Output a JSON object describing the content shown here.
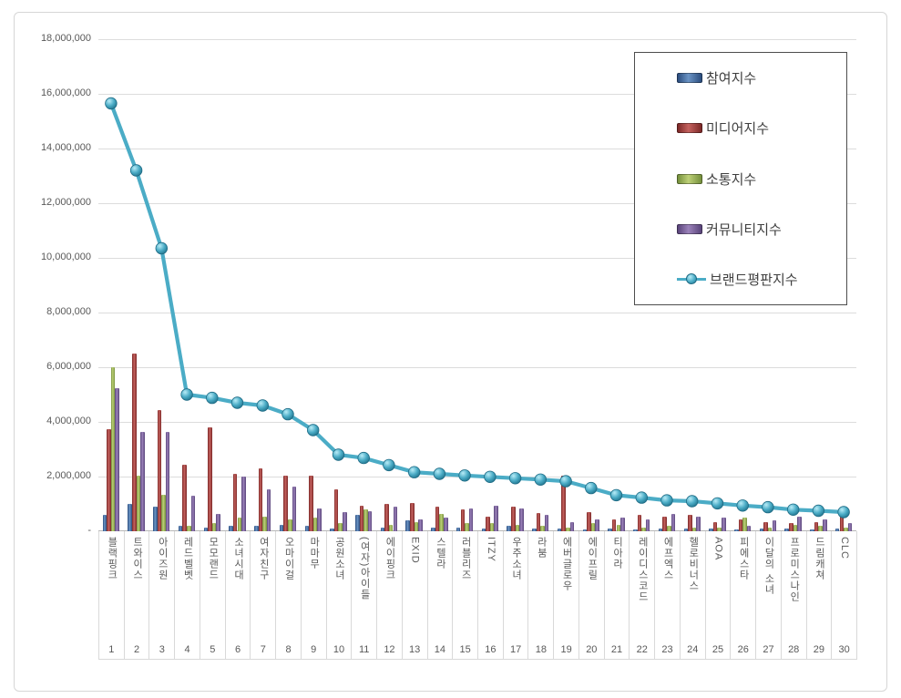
{
  "chart": {
    "background": "#ffffff",
    "grid_color": "#dcdcdc",
    "axis_color": "#b7b7b7",
    "text_color": "#595959"
  },
  "y_axis": {
    "tick_labels": [
      "18,000,000",
      "16,000,000",
      "14,000,000",
      "12,000,000",
      "10,000,000",
      "8,000,000",
      "6,000,000",
      "4,000,000",
      "2,000,000",
      "-"
    ],
    "min": 0,
    "max": 18000000,
    "step": 2000000
  },
  "chart_data": {
    "type": "bar+line",
    "title": "",
    "xlabel": "",
    "ylabel": "",
    "ylim": [
      0,
      18000000
    ],
    "grid": true,
    "legend_position": "top-right",
    "categories": [
      "블랙핑크",
      "트와이스",
      "아이즈원",
      "레드벨벳",
      "모모랜드",
      "소녀시대",
      "여자친구",
      "오마이걸",
      "마마무",
      "공원소녀",
      "(여자)아이들",
      "에이핑크",
      "EXID",
      "스텔라",
      "러블리즈",
      "ITZY",
      "우주소녀",
      "라붐",
      "에버글로우",
      "에이프릴",
      "티아라",
      "레이디스코드",
      "에프엑스",
      "헬로비너스",
      "AOA",
      "피에스타",
      "이달의 소녀",
      "프로미스나인",
      "드림캐쳐",
      "CLC"
    ],
    "ranks": [
      1,
      2,
      3,
      4,
      5,
      6,
      7,
      8,
      9,
      10,
      11,
      12,
      13,
      14,
      15,
      16,
      17,
      18,
      19,
      20,
      21,
      22,
      23,
      24,
      25,
      26,
      27,
      28,
      29,
      30
    ],
    "series": [
      {
        "name": "참여지수",
        "key": "participation-index",
        "type": "bar",
        "color": "#3f6ba5",
        "gradient": [
          "#2b4d7e",
          "#6a93c4",
          "#2b4d7e"
        ],
        "values": [
          600000,
          1000000,
          900000,
          200000,
          150000,
          200000,
          200000,
          250000,
          200000,
          100000,
          600000,
          150000,
          400000,
          150000,
          150000,
          100000,
          200000,
          100000,
          100000,
          80000,
          100000,
          80000,
          100000,
          100000,
          100000,
          80000,
          100000,
          100000,
          80000,
          100000
        ]
      },
      {
        "name": "미디어지수",
        "key": "media-index",
        "type": "bar",
        "color": "#a73a38",
        "gradient": [
          "#7c2827",
          "#c4615e",
          "#7c2827"
        ],
        "values": [
          3750000,
          6500000,
          4450000,
          2450000,
          3800000,
          2100000,
          2300000,
          2050000,
          2050000,
          1550000,
          950000,
          1000000,
          1050000,
          900000,
          800000,
          550000,
          900000,
          680000,
          2050000,
          700000,
          450000,
          600000,
          550000,
          600000,
          350000,
          450000,
          350000,
          300000,
          350000,
          550000
        ]
      },
      {
        "name": "소통지수",
        "key": "communication-index",
        "type": "bar",
        "color": "#9bbb59",
        "gradient": [
          "#75903c",
          "#bdd077",
          "#75903c"
        ],
        "values": [
          6000000,
          2050000,
          1350000,
          200000,
          300000,
          500000,
          550000,
          450000,
          500000,
          300000,
          800000,
          250000,
          350000,
          650000,
          300000,
          300000,
          250000,
          200000,
          150000,
          300000,
          250000,
          150000,
          200000,
          150000,
          150000,
          500000,
          150000,
          250000,
          200000,
          150000
        ]
      },
      {
        "name": "커뮤니티지수",
        "key": "community-index",
        "type": "bar",
        "color": "#7a5ca0",
        "gradient": [
          "#59447a",
          "#9b82ba",
          "#59447a"
        ],
        "values": [
          5250000,
          3650000,
          3650000,
          1300000,
          650000,
          2000000,
          1550000,
          1650000,
          850000,
          700000,
          750000,
          900000,
          450000,
          500000,
          850000,
          950000,
          850000,
          600000,
          350000,
          450000,
          500000,
          450000,
          650000,
          550000,
          500000,
          200000,
          400000,
          550000,
          450000,
          300000
        ]
      },
      {
        "name": "브랜드평판지수",
        "key": "brand-reputation-index",
        "type": "line",
        "color": "#4bacc6",
        "marker_colors": [
          "#b8ecf7",
          "#4bacc6",
          "#23768f"
        ],
        "values": [
          15650000,
          13200000,
          10350000,
          5000000,
          4880000,
          4700000,
          4600000,
          4280000,
          3700000,
          2800000,
          2680000,
          2420000,
          2160000,
          2100000,
          2040000,
          1990000,
          1940000,
          1890000,
          1830000,
          1580000,
          1320000,
          1230000,
          1130000,
          1100000,
          1020000,
          940000,
          880000,
          790000,
          750000,
          700000
        ]
      }
    ]
  }
}
